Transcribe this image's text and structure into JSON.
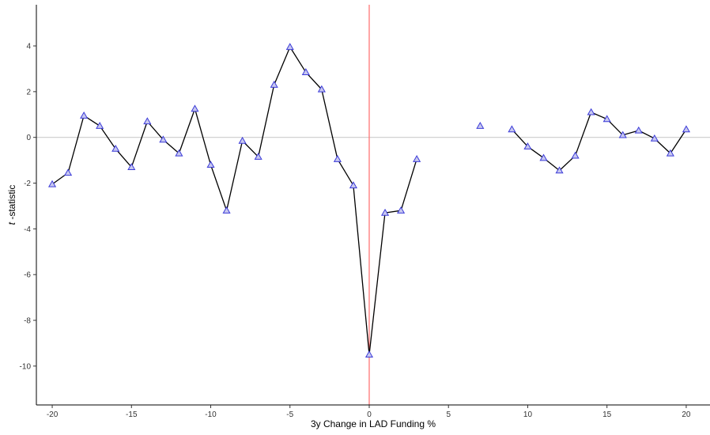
{
  "chart_data": {
    "type": "line",
    "xlabel": "3y Change in LAD Funding %",
    "ylabel_italic": "t",
    "ylabel_rest": " -statistic",
    "xlim": [
      -21,
      21.5
    ],
    "ylim": [
      -11.7,
      5.8
    ],
    "x_ticks": [
      -20,
      -15,
      -10,
      -5,
      0,
      5,
      10,
      15,
      20
    ],
    "x_tick_labels": [
      "-20",
      "-15",
      "-10",
      "-5",
      "0",
      "5",
      "10",
      "15",
      "20"
    ],
    "y_ticks": [
      4,
      2,
      0,
      -2,
      -4,
      -6,
      -8,
      -10
    ],
    "y_tick_labels": [
      "4",
      "2",
      "0",
      "-2",
      "-4",
      "-6",
      "-8",
      "-10"
    ],
    "reference_lines": {
      "horizontal_y": 0,
      "vertical_x": 0
    },
    "colors": {
      "line": "#000000",
      "marker": "#3b3bd9",
      "hline": "#cccccc",
      "vline": "#ff6b6b"
    },
    "marker": "triangle",
    "grid": false,
    "series": [
      {
        "points": [
          [
            -20,
            -2.05
          ],
          [
            -19,
            -1.55
          ],
          [
            -18,
            0.95
          ],
          [
            -17,
            0.5
          ],
          [
            -16,
            -0.5
          ],
          [
            -15,
            -1.3
          ],
          [
            -14,
            0.7
          ],
          [
            -13,
            -0.1
          ],
          [
            -12,
            -0.7
          ],
          [
            -11,
            1.25
          ],
          [
            -10,
            -1.2
          ],
          [
            -9,
            -3.2
          ],
          [
            -8,
            -0.15
          ],
          [
            -7,
            -0.85
          ],
          [
            -6,
            2.3
          ],
          [
            -5,
            3.95
          ],
          [
            -4,
            2.85
          ],
          [
            -3,
            2.1
          ],
          [
            -2,
            -0.95
          ],
          [
            -1,
            -2.1
          ],
          [
            0,
            -9.5
          ],
          [
            1,
            -3.3
          ],
          [
            2,
            -3.2
          ],
          [
            3,
            -0.95
          ],
          [
            7,
            0.5
          ],
          [
            9,
            0.35
          ],
          [
            10,
            -0.4
          ],
          [
            11,
            -0.9
          ],
          [
            12,
            -1.45
          ],
          [
            13,
            -0.8
          ],
          [
            14,
            1.1
          ],
          [
            15,
            0.8
          ],
          [
            16,
            0.1
          ],
          [
            17,
            0.3
          ],
          [
            18,
            -0.05
          ],
          [
            19,
            -0.7
          ],
          [
            20,
            0.35
          ]
        ],
        "line_segments": [
          [
            -20,
            3
          ],
          [
            9,
            20
          ]
        ]
      }
    ]
  }
}
